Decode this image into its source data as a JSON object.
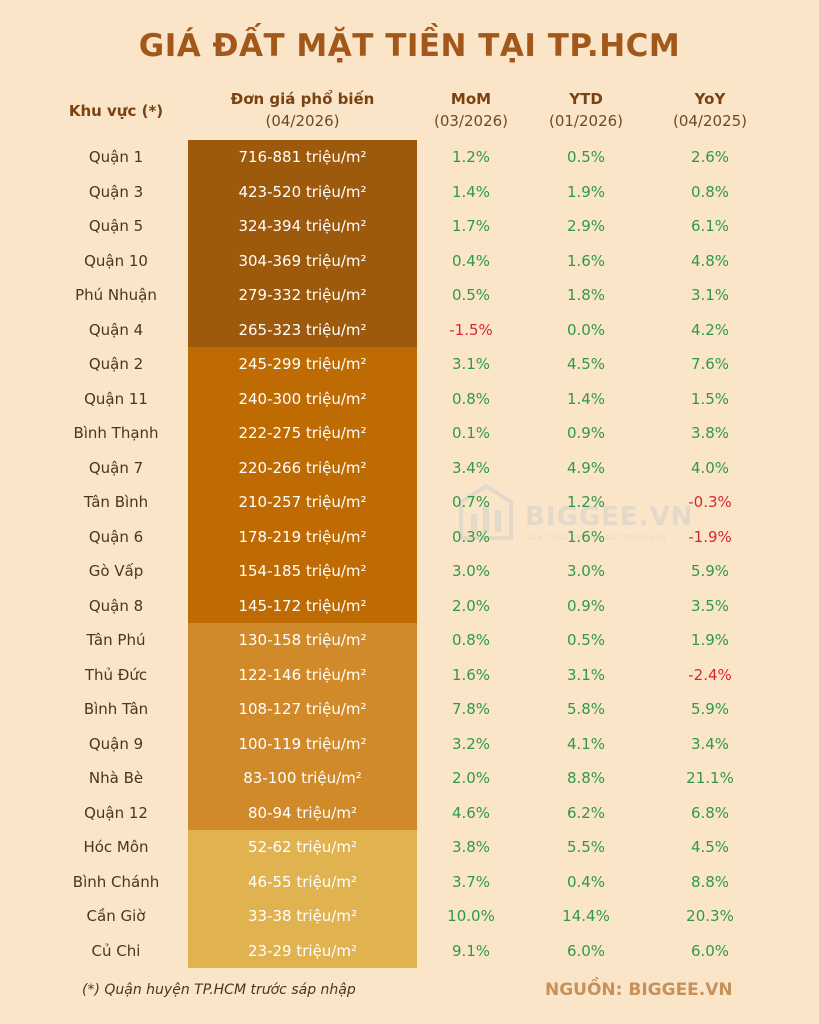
{
  "title": "GIÁ ĐẤT MẶT TIỀN TẠI TP.HCM",
  "headers": {
    "area": "Khu vực (*)",
    "price": "Đơn giá phổ biến",
    "price_sub": "(04/2026)",
    "mom": "MoM",
    "mom_sub": "(03/2026)",
    "ytd": "YTD",
    "ytd_sub": "(01/2026)",
    "yoy": "YoY",
    "yoy_sub": "(04/2025)"
  },
  "rows": [
    {
      "area": "Quận 1",
      "price": "716-881 triệu/m²",
      "mom": "1.2%",
      "ytd": "0.5%",
      "yoy": "2.6%"
    },
    {
      "area": "Quận 3",
      "price": "423-520 triệu/m²",
      "mom": "1.4%",
      "ytd": "1.9%",
      "yoy": "0.8%"
    },
    {
      "area": "Quận 5",
      "price": "324-394 triệu/m²",
      "mom": "1.7%",
      "ytd": "2.9%",
      "yoy": "6.1%"
    },
    {
      "area": "Quận 10",
      "price": "304-369 triệu/m²",
      "mom": "0.4%",
      "ytd": "1.6%",
      "yoy": "4.8%"
    },
    {
      "area": "Phú Nhuận",
      "price": "279-332 triệu/m²",
      "mom": "0.5%",
      "ytd": "1.8%",
      "yoy": "3.1%"
    },
    {
      "area": "Quận 4",
      "price": "265-323 triệu/m²",
      "mom": "-1.5%",
      "ytd": "0.0%",
      "yoy": "4.2%"
    },
    {
      "area": "Quận 2",
      "price": "245-299 triệu/m²",
      "mom": "3.1%",
      "ytd": "4.5%",
      "yoy": "7.6%"
    },
    {
      "area": "Quận 11",
      "price": "240-300 triệu/m²",
      "mom": "0.8%",
      "ytd": "1.4%",
      "yoy": "1.5%"
    },
    {
      "area": "Bình Thạnh",
      "price": "222-275 triệu/m²",
      "mom": "0.1%",
      "ytd": "0.9%",
      "yoy": "3.8%"
    },
    {
      "area": "Quận 7",
      "price": "220-266 triệu/m²",
      "mom": "3.4%",
      "ytd": "4.9%",
      "yoy": "4.0%"
    },
    {
      "area": "Tân Bình",
      "price": "210-257 triệu/m²",
      "mom": "0.7%",
      "ytd": "1.2%",
      "yoy": "-0.3%"
    },
    {
      "area": "Quận 6",
      "price": "178-219 triệu/m²",
      "mom": "0.3%",
      "ytd": "1.6%",
      "yoy": "-1.9%"
    },
    {
      "area": "Gò Vấp",
      "price": "154-185 triệu/m²",
      "mom": "3.0%",
      "ytd": "3.0%",
      "yoy": "5.9%"
    },
    {
      "area": "Quận 8",
      "price": "145-172 triệu/m²",
      "mom": "2.0%",
      "ytd": "0.9%",
      "yoy": "3.5%"
    },
    {
      "area": "Tân Phú",
      "price": "130-158 triệu/m²",
      "mom": "0.8%",
      "ytd": "0.5%",
      "yoy": "1.9%"
    },
    {
      "area": "Thủ Đức",
      "price": "122-146 triệu/m²",
      "mom": "1.6%",
      "ytd": "3.1%",
      "yoy": "-2.4%"
    },
    {
      "area": "Bình Tân",
      "price": "108-127 triệu/m²",
      "mom": "7.8%",
      "ytd": "5.8%",
      "yoy": "5.9%"
    },
    {
      "area": "Quận 9",
      "price": "100-119 triệu/m²",
      "mom": "3.2%",
      "ytd": "4.1%",
      "yoy": "3.4%"
    },
    {
      "area": "Nhà Bè",
      "price": "83-100 triệu/m²",
      "mom": "2.0%",
      "ytd": "8.8%",
      "yoy": "21.1%"
    },
    {
      "area": "Quận 12",
      "price": "80-94 triệu/m²",
      "mom": "4.6%",
      "ytd": "6.2%",
      "yoy": "6.8%"
    },
    {
      "area": "Hóc Môn",
      "price": "52-62 triệu/m²",
      "mom": "3.8%",
      "ytd": "5.5%",
      "yoy": "4.5%"
    },
    {
      "area": "Bình Chánh",
      "price": "46-55 triệu/m²",
      "mom": "3.7%",
      "ytd": "0.4%",
      "yoy": "8.8%"
    },
    {
      "area": "Cần Giờ",
      "price": "33-38 triệu/m²",
      "mom": "10.0%",
      "ytd": "14.4%",
      "yoy": "20.3%"
    },
    {
      "area": "Củ Chi",
      "price": "23-29 triệu/m²",
      "mom": "9.1%",
      "ytd": "6.0%",
      "yoy": "6.0%"
    }
  ],
  "price_bands": [
    {
      "rows": 6,
      "color": "#9e5a0c"
    },
    {
      "rows": 8,
      "color": "#bf6b04"
    },
    {
      "rows": 6,
      "color": "#d08a2a"
    },
    {
      "rows": 4,
      "color": "#e1b250"
    }
  ],
  "colors": {
    "positive": "#2f9a45",
    "negative": "#d9262b",
    "title": "#a3581b"
  },
  "watermark": {
    "brand": "BIGGEE.VN",
    "tagline": "NỀN TẢNG DỮ LIỆU BẤT ĐỘNG SẢN",
    "icon": "building-chart-icon"
  },
  "footer": {
    "note": "(*) Quận huyện TP.HCM trước sáp nhập",
    "source": "NGUỒN: BIGGEE.VN"
  }
}
